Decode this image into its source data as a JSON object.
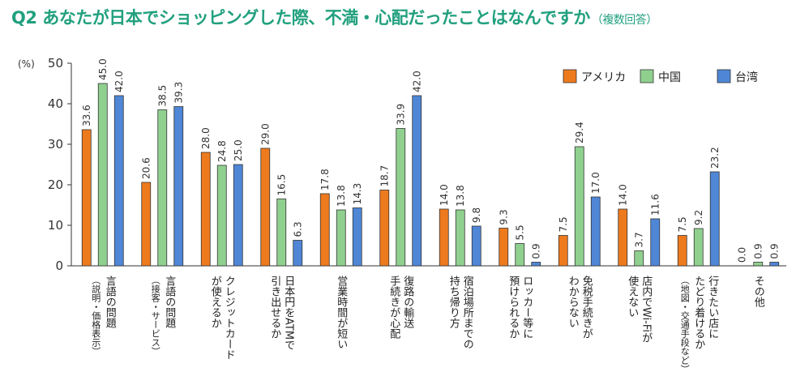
{
  "title": "Q2 あなたが日本でショッピングした際、不満・心配だったことはなんですか",
  "title_note": "（複数回答）",
  "chart_data": {
    "type": "bar",
    "title": "Q2 あなたが日本でショッピングした際、不満・心配だったことはなんですか（複数回答）",
    "ylabel": "(%)",
    "ylim": [
      0,
      50
    ],
    "yticks": [
      0,
      10,
      20,
      30,
      40,
      50
    ],
    "grid": false,
    "legend_position": "top-right",
    "categories": [
      {
        "lines": [
          "言語の問題"
        ],
        "sub": "（説明・価格表示）"
      },
      {
        "lines": [
          "言語の問題"
        ],
        "sub": "（接客・サービス）"
      },
      {
        "lines": [
          "クレジットカード",
          "が使えるか"
        ],
        "sub": ""
      },
      {
        "lines": [
          "日本円をATMで",
          "引き出せるか"
        ],
        "sub": ""
      },
      {
        "lines": [
          "営業時間が短い"
        ],
        "sub": ""
      },
      {
        "lines": [
          "復路の輸送",
          "手続きが心配"
        ],
        "sub": ""
      },
      {
        "lines": [
          "宿泊場所までの",
          "持ち帰り方"
        ],
        "sub": ""
      },
      {
        "lines": [
          "ロッカー等に",
          "預けられるか"
        ],
        "sub": ""
      },
      {
        "lines": [
          "免税手続きが",
          "わからない"
        ],
        "sub": ""
      },
      {
        "lines": [
          "店内でWi-Fiが",
          "使えない"
        ],
        "sub": ""
      },
      {
        "lines": [
          "行きたい店に",
          "たどり着けるか"
        ],
        "sub": "（地図・交通手段など）"
      },
      {
        "lines": [
          "その他"
        ],
        "sub": ""
      }
    ],
    "series": [
      {
        "name": "アメリカ",
        "color": "#ee7a1e",
        "values": [
          33.6,
          20.6,
          28.0,
          29.0,
          17.8,
          18.7,
          14.0,
          9.3,
          7.5,
          14.0,
          7.5,
          0.0
        ],
        "labels": [
          "33.6",
          "20.6",
          "28.0",
          "29.0",
          "17.8",
          "18.7",
          "14.0",
          "9.3",
          "7.5",
          "14.0",
          "7.5",
          "0.0"
        ]
      },
      {
        "name": "中国",
        "color": "#8fd08f",
        "values": [
          45.0,
          38.5,
          24.8,
          16.5,
          13.8,
          33.9,
          13.8,
          5.5,
          29.4,
          3.7,
          9.2,
          0.9
        ],
        "labels": [
          "45.0",
          "38.5",
          "24.8",
          "16.5",
          "13.8",
          "33.9",
          "13.8",
          "5.5",
          "29.4",
          "3.7",
          "9.2",
          "0.9"
        ]
      },
      {
        "name": "台湾",
        "color": "#4f86d6",
        "values": [
          42.0,
          39.3,
          25.0,
          6.3,
          14.3,
          42.0,
          9.8,
          0.9,
          17.0,
          11.6,
          23.2,
          0.9
        ],
        "labels": [
          "42.0",
          "39.3",
          "25.0",
          "6.3",
          "14.3",
          "42.0",
          "9.8",
          "0.9",
          "17.0",
          "11.6",
          "23.2",
          "0.9"
        ]
      }
    ]
  }
}
